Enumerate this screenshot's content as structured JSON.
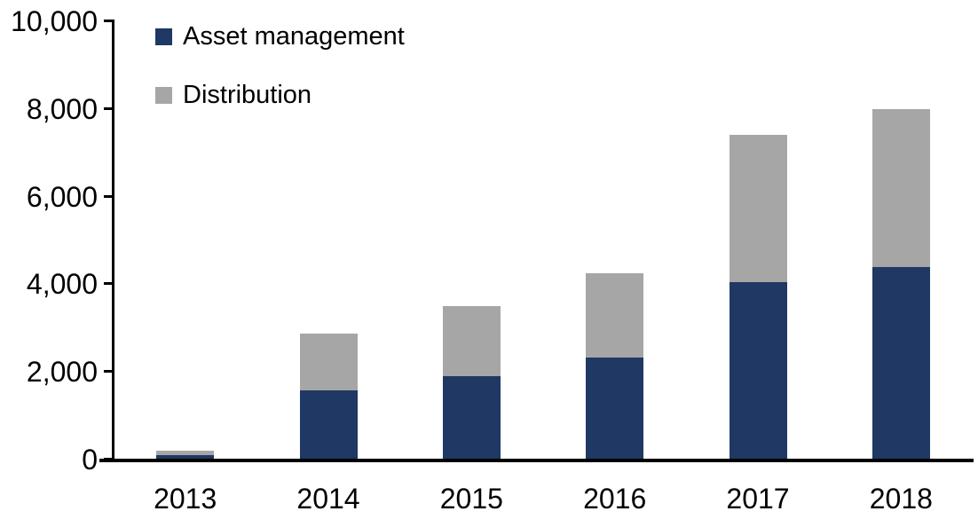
{
  "chart_data": {
    "type": "bar",
    "stacked": true,
    "title": "",
    "xlabel": "",
    "ylabel": "",
    "categories": [
      "2013",
      "2014",
      "2015",
      "2016",
      "2017",
      "2018"
    ],
    "series": [
      {
        "name": "Asset management",
        "color": "#1f3864",
        "values": [
          100,
          1575,
          1900,
          2330,
          4050,
          4400
        ]
      },
      {
        "name": "Distribution",
        "color": "#a6a6a6",
        "values": [
          100,
          1300,
          1600,
          1920,
          3350,
          3600
        ]
      }
    ],
    "ylim": [
      0,
      10000
    ],
    "ytick_interval": 2000,
    "ytick_labels": [
      "0",
      "2,000",
      "4,000",
      "6,000",
      "8,000",
      "10,000"
    ],
    "legend_position": "top-left",
    "grid": false,
    "axis_color": "#000000",
    "text_color": "#000000",
    "background_color": "#ffffff"
  }
}
